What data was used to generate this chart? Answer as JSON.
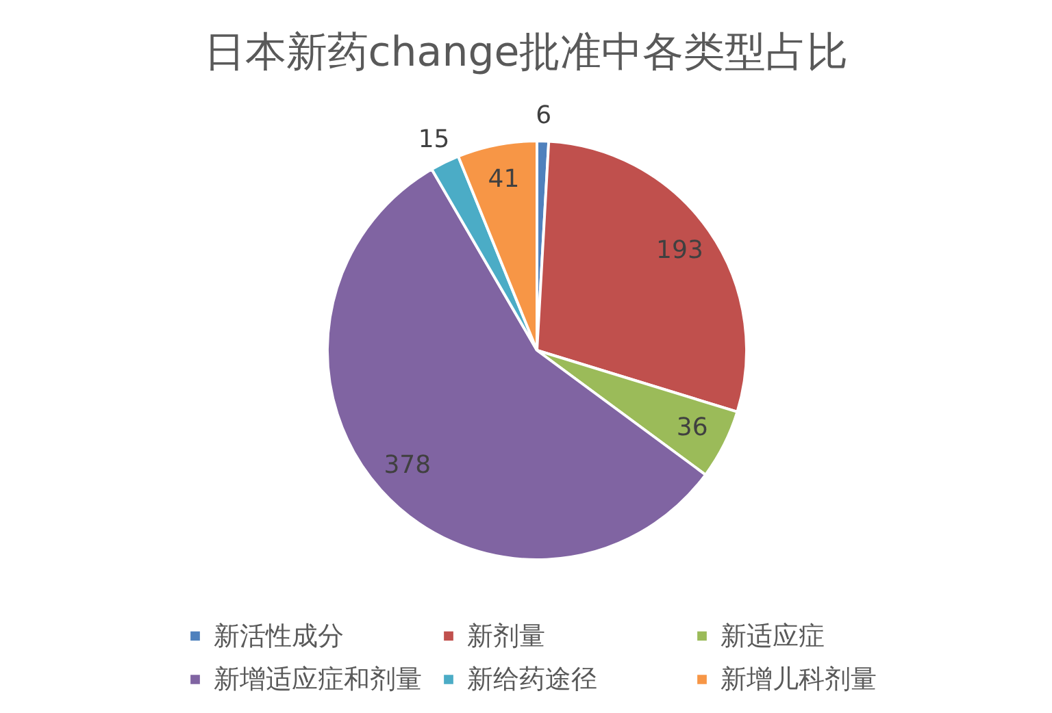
{
  "chart_data": {
    "type": "pie",
    "title": "日本新药change批准中各类型占比",
    "categories": [
      "新活性成分",
      "新剂量",
      "新适应症",
      "新增适应症和剂量",
      "新给药途径",
      "新增儿科剂量"
    ],
    "values": [
      6,
      193,
      36,
      378,
      15,
      41
    ],
    "colors": [
      "#4f81bd",
      "#c0504d",
      "#9bbb59",
      "#8064a2",
      "#4bacc6",
      "#f79646"
    ],
    "data_labels": true,
    "legend": "bottom"
  }
}
